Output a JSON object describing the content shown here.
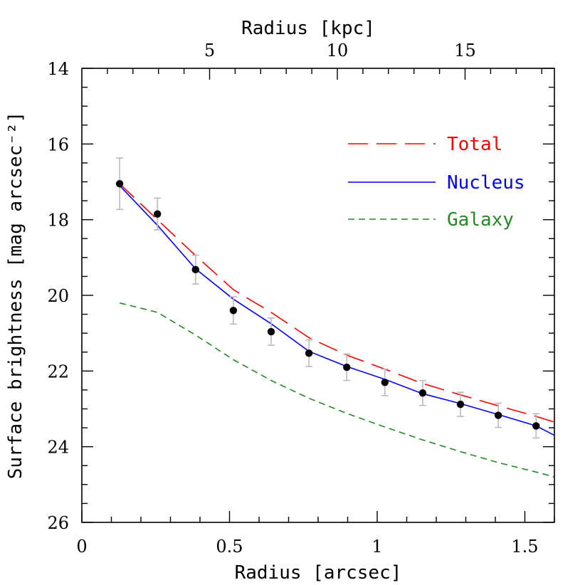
{
  "chart_data": {
    "type": "line",
    "xlabel": "Radius [arcsec]",
    "ylabel": "Surface brightness [mag arcsec⁻²]",
    "top_xlabel": "Radius [kpc]",
    "xlim": [
      0,
      1.6
    ],
    "ylim": [
      26,
      14
    ],
    "x_ticks": [
      0,
      0.5,
      1,
      1.5
    ],
    "x_tick_labels": [
      "0",
      "0.5",
      "1",
      "1.5"
    ],
    "y_ticks": [
      14,
      16,
      18,
      20,
      22,
      24,
      26
    ],
    "y_tick_labels": [
      "14",
      "16",
      "18",
      "20",
      "22",
      "24",
      "26"
    ],
    "top_ticks_kpc": [
      5,
      10,
      15
    ],
    "top_tick_labels": [
      "5",
      "10",
      "15"
    ],
    "kpc_per_arcsec": 11.56,
    "grid": false,
    "legend_position": "upper-right",
    "series": [
      {
        "name": "Total",
        "style": "long-dash",
        "color": "#ff0000",
        "x": [
          0.128,
          0.256,
          0.385,
          0.513,
          0.641,
          0.769,
          0.897,
          1.026,
          1.154,
          1.282,
          1.41,
          1.538,
          1.6
        ],
        "y": [
          17.05,
          18.0,
          18.95,
          19.85,
          20.45,
          21.12,
          21.58,
          21.95,
          22.33,
          22.63,
          22.92,
          23.2,
          23.35
        ]
      },
      {
        "name": "Nucleus",
        "style": "solid",
        "color": "#0000ff",
        "x": [
          0.128,
          0.256,
          0.385,
          0.513,
          0.641,
          0.769,
          0.897,
          1.026,
          1.154,
          1.282,
          1.41,
          1.538,
          1.6
        ],
        "y": [
          17.1,
          18.15,
          19.3,
          20.1,
          20.75,
          21.48,
          21.88,
          22.22,
          22.6,
          22.86,
          23.15,
          23.45,
          23.7
        ]
      },
      {
        "name": "Galaxy",
        "style": "short-dash",
        "color": "#228b22",
        "x": [
          0.128,
          0.256,
          0.385,
          0.513,
          0.641,
          0.769,
          0.897,
          1.026,
          1.154,
          1.282,
          1.41,
          1.538,
          1.6
        ],
        "y": [
          20.2,
          20.45,
          21.05,
          21.7,
          22.25,
          22.72,
          23.12,
          23.48,
          23.82,
          24.13,
          24.42,
          24.67,
          24.8
        ]
      }
    ],
    "data_points": {
      "x": [
        0.128,
        0.256,
        0.385,
        0.513,
        0.641,
        0.769,
        0.897,
        1.026,
        1.154,
        1.282,
        1.41,
        1.538
      ],
      "y": [
        17.05,
        17.85,
        19.32,
        20.4,
        20.96,
        21.53,
        21.9,
        22.3,
        22.58,
        22.88,
        23.17,
        23.45
      ],
      "err": [
        0.68,
        0.42,
        0.38,
        0.36,
        0.36,
        0.35,
        0.35,
        0.35,
        0.33,
        0.32,
        0.32,
        0.32
      ],
      "marker_color": "#000000",
      "errorbar_color": "#bbbbbb"
    }
  }
}
